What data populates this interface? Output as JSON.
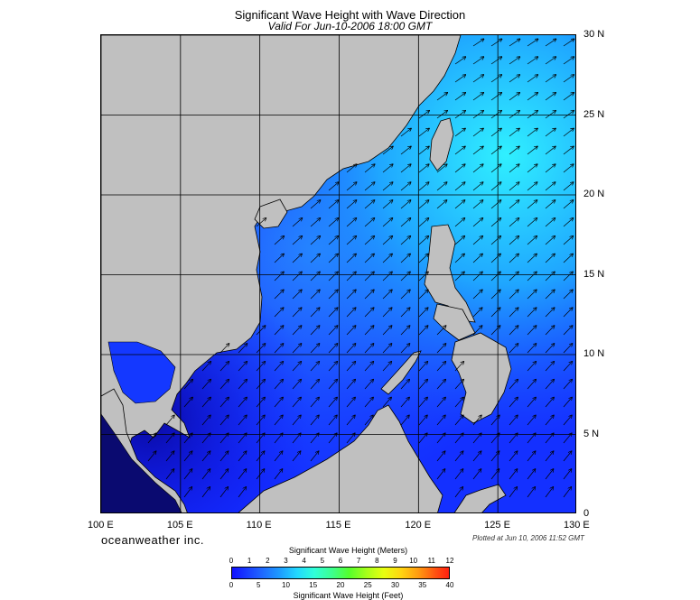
{
  "title": "Significant Wave Height with Wave Direction",
  "subtitle": "Valid For Jun-10-2006 18:00 GMT",
  "lat_labels": [
    "30 N",
    "25 N",
    "20 N",
    "15 N",
    "10 N",
    "5 N",
    "0"
  ],
  "lon_labels": [
    "100 E",
    "105 E",
    "110 E",
    "115 E",
    "120 E",
    "125 E",
    "130 E"
  ],
  "lat_values": [
    30,
    25,
    20,
    15,
    10,
    5,
    0
  ],
  "lon_values": [
    100,
    105,
    110,
    115,
    120,
    125,
    130
  ],
  "brand": "oceanweather inc.",
  "plotted": "Plotted at Jun 10, 2006 11:52 GMT",
  "colorbar": {
    "meters_title": "Significant Wave Height (Meters)",
    "feet_title": "Significant Wave Height (Feet)",
    "meters_ticks": [
      "0",
      "1",
      "2",
      "3",
      "4",
      "5",
      "6",
      "7",
      "8",
      "9",
      "10",
      "11",
      "12"
    ],
    "feet_ticks": [
      "0",
      "5",
      "10",
      "15",
      "20",
      "25",
      "30",
      "35",
      "40"
    ]
  },
  "colors": {
    "land": "#c0c0c0",
    "sea_low": "#1010ff",
    "sea_mid": "#1e5cff",
    "sea_high": "#22d8ff",
    "arrow": "#000000"
  },
  "wave_direction": "arrows pointing north-east over most of the sea"
}
